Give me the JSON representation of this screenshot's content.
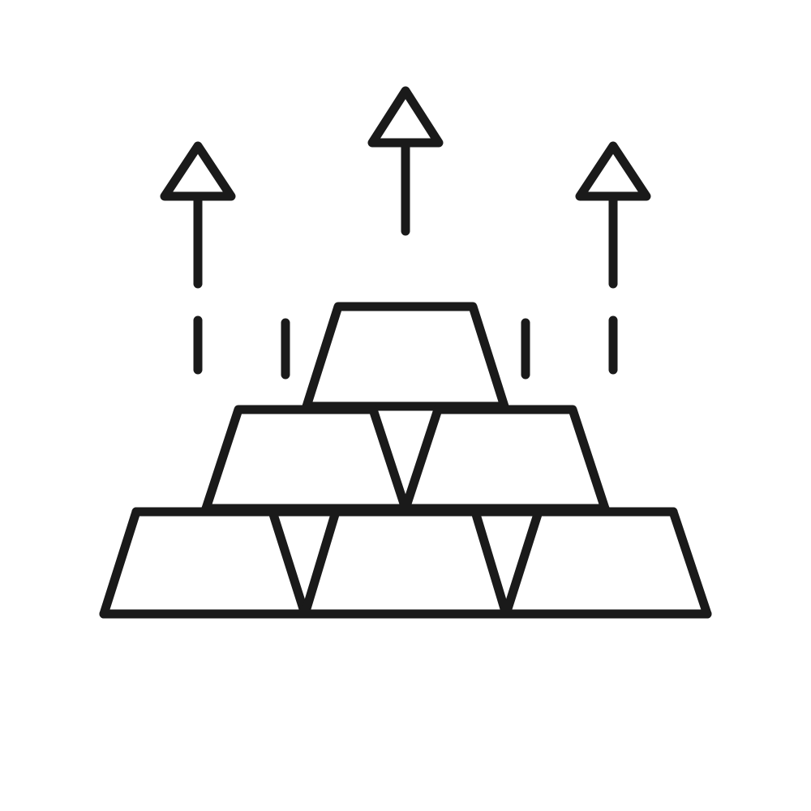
{
  "icon": {
    "name": "gold-bars-rising-icon",
    "stroke_color": "#1a1a1a",
    "background_color": "#ffffff",
    "parts": [
      "gold-bar-stack",
      "up-arrow-left",
      "up-arrow-center",
      "up-arrow-right",
      "motion-dashes"
    ]
  }
}
